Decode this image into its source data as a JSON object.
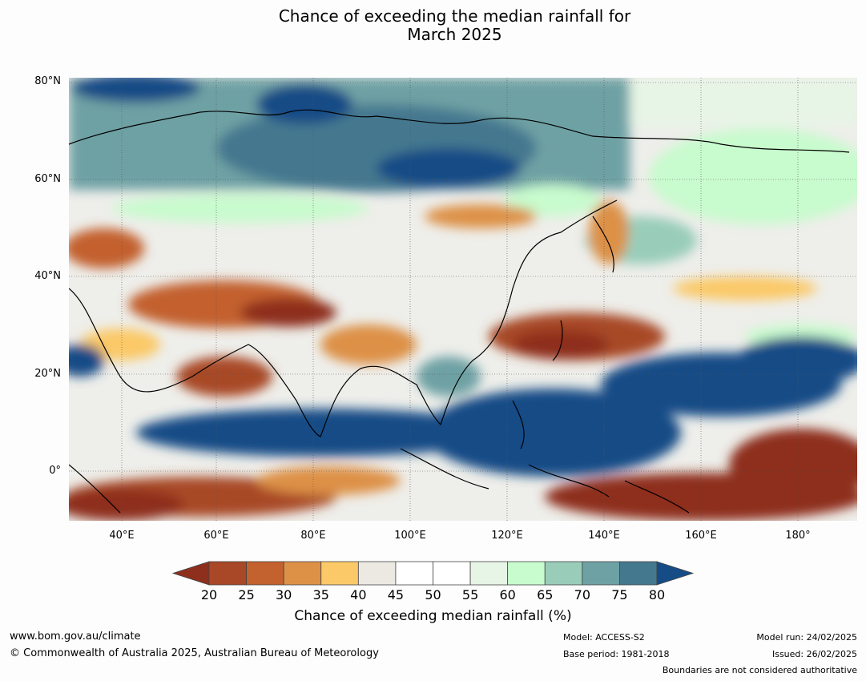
{
  "title_line1": "Chance of exceeding the median rainfall for",
  "title_line2": "March 2025",
  "map": {
    "lon_range": [
      30,
      191
    ],
    "lat_range": [
      -10,
      81
    ],
    "lat_ticks": [
      "80°N",
      "60°N",
      "40°N",
      "20°N",
      "0°"
    ],
    "lon_ticks": [
      "40°E",
      "60°E",
      "80°E",
      "100°E",
      "120°E",
      "140°E",
      "160°E",
      "180°"
    ]
  },
  "colorbar": {
    "label": "Chance of exceeding median rainfall (%)",
    "ticks": [
      "20",
      "25",
      "30",
      "35",
      "40",
      "45",
      "50",
      "55",
      "60",
      "65",
      "70",
      "75",
      "80"
    ],
    "under_color": "#8e2f1d",
    "over_color": "#164c86",
    "colors": [
      "#a84826",
      "#c3612f",
      "#dd9146",
      "#fbc968",
      "#ece9e3",
      "#ffffff",
      "#ffffff",
      "#e7f5e6",
      "#c8fbcd",
      "#99cdba",
      "#6ea1a4",
      "#44788f"
    ]
  },
  "footer": {
    "website": "www.bom.gov.au/climate",
    "copyright": "© Commonwealth of Australia 2025, Australian Bureau of Meteorology",
    "model": "Model: ACCESS-S2",
    "base_period": "Base period: 1981-2018",
    "model_run": "Model run: 24/02/2025",
    "issued": "Issued: 26/02/2025",
    "disclaimer": "Boundaries are not considered authoritative"
  }
}
